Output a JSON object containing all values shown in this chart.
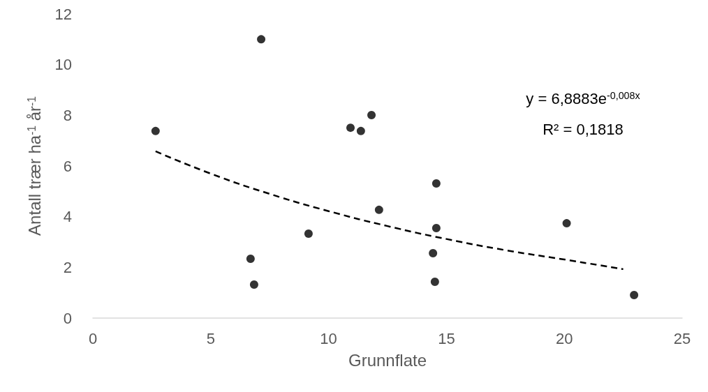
{
  "chart_data": {
    "type": "scatter",
    "xlabel": "Grunnflate",
    "ylabel": "Antall trær ha$^{-1}$ år$^{-1}$",
    "xlim": [
      0,
      25
    ],
    "xticks": [
      0,
      5,
      10,
      15,
      20,
      25
    ],
    "ylim": [
      0,
      12
    ],
    "yticks": [
      0,
      2,
      4,
      6,
      8,
      10,
      12
    ],
    "grid": false,
    "marker": "circle",
    "annotations": [
      "y = 6,8883e$^{-0,008x}$",
      "R² = 0,1818"
    ],
    "series": [
      {
        "color": "#000000",
        "x": [
          2.66,
          7.14,
          6.69,
          6.84,
          9.15,
          10.93,
          11.37,
          11.82,
          12.14,
          14.57,
          14.57,
          14.43,
          14.51,
          20.1,
          22.96
        ],
        "values": [
          7.38,
          11.0,
          2.34,
          1.32,
          3.33,
          7.51,
          7.38,
          8.01,
          4.27,
          5.31,
          3.55,
          2.56,
          1.43,
          3.74,
          0.91
        ]
      },
      {
        "type": "line",
        "color": "#000000",
        "line_style": "dashed",
        "marker": "none",
        "x": [
          2.66,
          5,
          7.5,
          10,
          12.5,
          15,
          17.5,
          20,
          22.5
        ],
        "values": [
          6.58,
          5.7,
          4.9,
          4.22,
          3.63,
          3.12,
          2.68,
          2.31,
          1.93
        ]
      }
    ]
  }
}
